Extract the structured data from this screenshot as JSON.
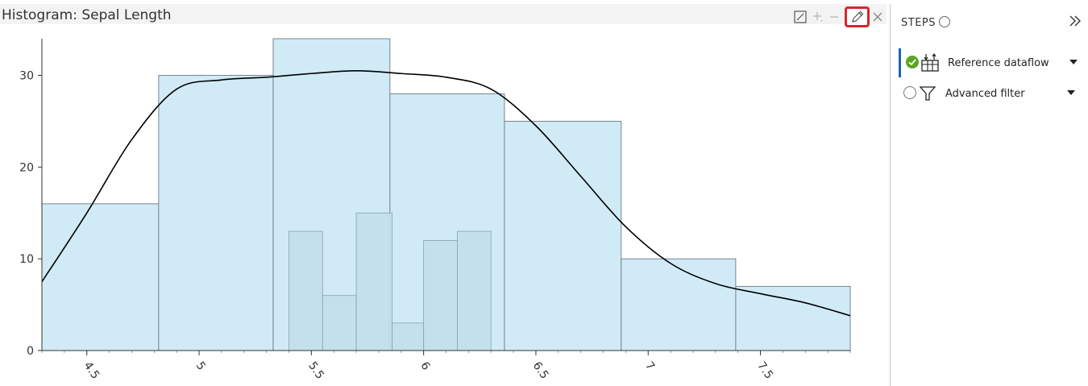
{
  "chart_title": "Histogram: Sepal Length",
  "toolbar": {
    "expand_icon": "expand-icon",
    "zoom_in_icon": "zoom-in-icon",
    "zoom_out_icon": "zoom-out-icon",
    "edit_icon": "pencil-icon",
    "close_icon": "close-icon",
    "highlight_color": "#d9252f"
  },
  "steps_panel": {
    "header": "STEPS",
    "collapse_icon": "double-chevron-right-icon",
    "steps": [
      {
        "label": "Reference dataflow",
        "status": "done",
        "icon": "dataflow-icon",
        "active": true
      },
      {
        "label": "Advanced filter",
        "status": "pending",
        "icon": "filter-icon",
        "active": false
      }
    ]
  },
  "chart_data": {
    "type": "bar",
    "title": "Histogram: Sepal Length",
    "xlabel": "",
    "ylabel": "",
    "xlim": [
      4.3,
      7.9
    ],
    "ylim": [
      0,
      34
    ],
    "x_ticks": [
      "4.5",
      "5",
      "5.5",
      "6",
      "6.5",
      "7",
      "7.5"
    ],
    "x_tick_values": [
      4.5,
      5,
      5.5,
      6,
      6.5,
      7,
      7.5
    ],
    "y_ticks": [
      "0",
      "10",
      "20",
      "30"
    ],
    "y_tick_values": [
      0,
      10,
      20,
      30
    ],
    "grid": false,
    "colors": {
      "bar_fill": "#d0ebf6",
      "bar_stroke": "#5b6a73",
      "overlay_fill": "#c2e0ea",
      "overlay_stroke": "#8aa0aa",
      "curve": "#000000"
    },
    "bins": [
      {
        "start": 4.3,
        "end": 4.82,
        "count": 16
      },
      {
        "start": 4.82,
        "end": 5.33,
        "count": 30
      },
      {
        "start": 5.33,
        "end": 5.85,
        "count": 34
      },
      {
        "start": 5.85,
        "end": 6.36,
        "count": 28
      },
      {
        "start": 6.36,
        "end": 6.88,
        "count": 25
      },
      {
        "start": 6.88,
        "end": 7.39,
        "count": 10
      },
      {
        "start": 7.39,
        "end": 7.9,
        "count": 7
      }
    ],
    "overlay_bins": [
      {
        "start": 5.4,
        "end": 5.55,
        "count": 13
      },
      {
        "start": 5.55,
        "end": 5.7,
        "count": 6
      },
      {
        "start": 5.7,
        "end": 5.86,
        "count": 15
      },
      {
        "start": 5.86,
        "end": 6.0,
        "count": 3
      },
      {
        "start": 6.0,
        "end": 6.15,
        "count": 12
      },
      {
        "start": 6.15,
        "end": 6.3,
        "count": 13
      }
    ],
    "density_curve": {
      "x": [
        4.3,
        4.5,
        4.7,
        4.9,
        5.1,
        5.3,
        5.5,
        5.7,
        5.9,
        6.1,
        6.3,
        6.5,
        6.7,
        6.9,
        7.1,
        7.3,
        7.5,
        7.7,
        7.9
      ],
      "y": [
        7.5,
        15,
        23,
        28.5,
        29.5,
        29.8,
        30.2,
        30.5,
        30.2,
        29.8,
        28.5,
        24.5,
        19,
        13.5,
        9.5,
        7.3,
        6.2,
        5.2,
        3.8
      ]
    }
  }
}
